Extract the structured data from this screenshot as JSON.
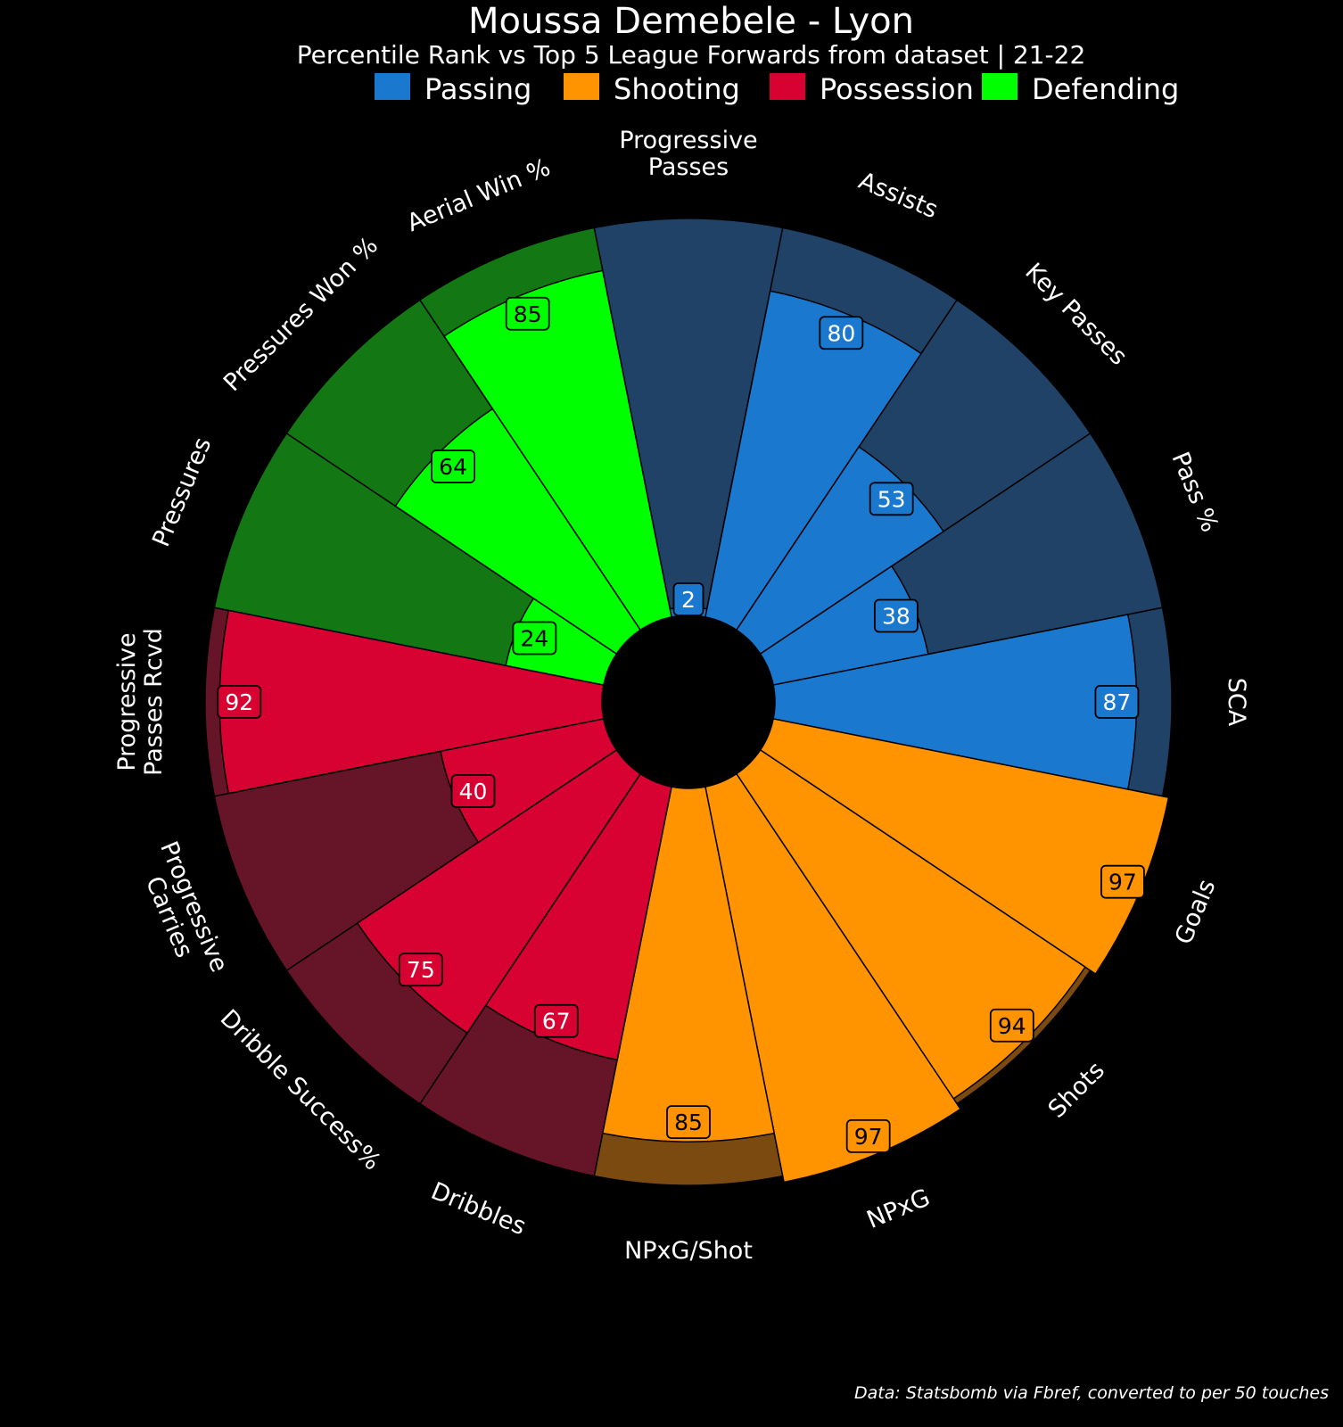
{
  "chart_data": {
    "type": "radial-bar",
    "title": "Moussa Demebele - Lyon",
    "subtitle": "Percentile Rank vs Top 5 League Forwards from dataset | 21-22",
    "footnote": "Data: Statsbomb via Fbref, converted to per 50 touches",
    "range": [
      0,
      100
    ],
    "groups": [
      {
        "name": "Passing",
        "color": "#1a78cf",
        "bg_color": "#1f4266"
      },
      {
        "name": "Shooting",
        "color": "#ff9300",
        "bg_color": "#7a4a10"
      },
      {
        "name": "Possession",
        "color": "#d70232",
        "bg_color": "#661427"
      },
      {
        "name": "Defending",
        "color": "#00ff00",
        "bg_color": "#137813"
      }
    ],
    "categories": [
      {
        "label": "Progressive\nPasses",
        "value": 2,
        "group": "Passing"
      },
      {
        "label": "Assists",
        "value": 80,
        "group": "Passing"
      },
      {
        "label": "Key Passes",
        "value": 53,
        "group": "Passing"
      },
      {
        "label": "Pass %",
        "value": 38,
        "group": "Passing"
      },
      {
        "label": "SCA",
        "value": 87,
        "group": "Passing"
      },
      {
        "label": "Goals",
        "value": 97,
        "group": "Shooting"
      },
      {
        "label": "Shots",
        "value": 94,
        "group": "Shooting"
      },
      {
        "label": "NPxG",
        "value": 97,
        "group": "Shooting"
      },
      {
        "label": "NPxG/Shot",
        "value": 85,
        "group": "Shooting"
      },
      {
        "label": "Dribbles",
        "value": 67,
        "group": "Possession"
      },
      {
        "label": "Dribble Success%",
        "value": 75,
        "group": "Possession"
      },
      {
        "label": "Progressive\nCarries",
        "value": 40,
        "group": "Possession"
      },
      {
        "label": "Progressive\nPasses Rcvd",
        "value": 92,
        "group": "Possession"
      },
      {
        "label": "Pressures",
        "value": 24,
        "group": "Defending"
      },
      {
        "label": "Pressures Won %",
        "value": 64,
        "group": "Defending"
      },
      {
        "label": "Aerial Win %",
        "value": 85,
        "group": "Defending"
      }
    ]
  }
}
